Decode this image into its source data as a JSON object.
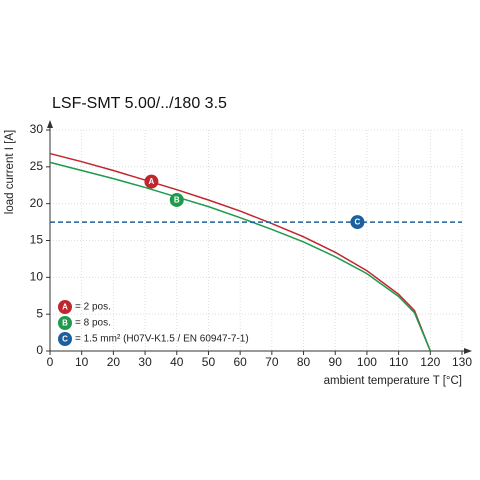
{
  "chart_data": {
    "type": "line",
    "title": "LSF-SMT 5.00/../180 3.5",
    "x_label": "ambient temperature T [°C]",
    "y_label": "load current I [A]",
    "xlim": [
      0,
      130
    ],
    "ylim": [
      0,
      30
    ],
    "xticks": [
      0,
      10,
      20,
      30,
      40,
      50,
      60,
      70,
      80,
      90,
      100,
      110,
      120,
      130
    ],
    "yticks": [
      0,
      5,
      10,
      15,
      20,
      25,
      30
    ],
    "grid": true,
    "series": [
      {
        "name": "= 2 pos.",
        "marker": "A",
        "color": "#c0262e",
        "style": "solid",
        "x": [
          0,
          10,
          20,
          30,
          40,
          50,
          60,
          70,
          80,
          90,
          100,
          110,
          115,
          120
        ],
        "values": [
          26.8,
          25.7,
          24.5,
          23.2,
          21.9,
          20.5,
          19.0,
          17.3,
          15.5,
          13.4,
          10.9,
          7.7,
          5.5,
          0
        ],
        "marker_x": 32,
        "marker_y": 23
      },
      {
        "name": "= 8 pos.",
        "marker": "B",
        "color": "#1f9a4c",
        "style": "solid",
        "x": [
          0,
          10,
          20,
          30,
          40,
          50,
          60,
          70,
          80,
          90,
          100,
          110,
          115,
          120
        ],
        "values": [
          25.6,
          24.5,
          23.4,
          22.2,
          20.9,
          19.6,
          18.1,
          16.5,
          14.8,
          12.8,
          10.5,
          7.4,
          5.2,
          0
        ],
        "marker_x": 40,
        "marker_y": 20.5
      },
      {
        "name": "= 1.5 mm² (H07V-K1.5 / EN 60947-7-1)",
        "marker": "C",
        "color": "#1c5f9c",
        "style": "dashed",
        "x": [
          0,
          130
        ],
        "values": [
          17.5,
          17.5
        ],
        "marker_x": 97,
        "marker_y": 17.5
      }
    ]
  }
}
